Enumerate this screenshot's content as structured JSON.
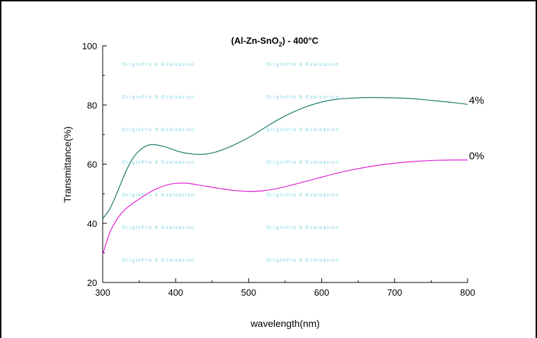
{
  "chart_data": {
    "type": "line",
    "title": "(Al-Zn-SnO",
    "title_subscript": "2",
    "title_suffix": ") - 400°C",
    "xlabel": "wavelength(nm)",
    "ylabel": "Transmittance(%)",
    "xlim": [
      300,
      800
    ],
    "ylim": [
      20,
      100
    ],
    "xticks": [
      "300",
      "400",
      "500",
      "600",
      "700",
      "800"
    ],
    "yticks": [
      "20",
      "40",
      "60",
      "80",
      "100"
    ],
    "grid": false,
    "watermark": "OriginPro 8 Evaluation",
    "series": [
      {
        "name": "4%",
        "color": "#1a7a6e",
        "x": [
          300,
          310,
          320,
          330,
          340,
          350,
          360,
          370,
          380,
          390,
          400,
          410,
          420,
          430,
          440,
          450,
          460,
          480,
          500,
          520,
          540,
          560,
          580,
          600,
          620,
          640,
          660,
          680,
          700,
          720,
          740,
          760,
          780,
          800
        ],
        "y": [
          41.5,
          45.0,
          50.5,
          56.5,
          61.5,
          64.5,
          66.2,
          66.6,
          66.2,
          65.5,
          64.6,
          63.9,
          63.5,
          63.3,
          63.4,
          63.8,
          64.5,
          66.5,
          69.0,
          72.0,
          75.0,
          77.5,
          79.5,
          81.0,
          81.9,
          82.3,
          82.5,
          82.5,
          82.4,
          82.2,
          81.8,
          81.3,
          80.8,
          80.2
        ]
      },
      {
        "name": "0%",
        "color": "#e020d0",
        "x": [
          300,
          310,
          320,
          330,
          340,
          350,
          360,
          370,
          380,
          390,
          400,
          410,
          420,
          430,
          440,
          450,
          460,
          480,
          500,
          520,
          540,
          560,
          580,
          600,
          620,
          640,
          660,
          680,
          700,
          720,
          740,
          760,
          780,
          800
        ],
        "y": [
          29.5,
          37.0,
          41.5,
          44.5,
          46.5,
          48.2,
          49.8,
          51.2,
          52.3,
          53.1,
          53.5,
          53.6,
          53.4,
          53.0,
          52.6,
          52.2,
          51.8,
          51.1,
          50.8,
          51.0,
          51.8,
          53.0,
          54.3,
          55.6,
          56.9,
          58.0,
          58.9,
          59.7,
          60.3,
          60.8,
          61.1,
          61.3,
          61.4,
          61.4
        ]
      }
    ]
  }
}
